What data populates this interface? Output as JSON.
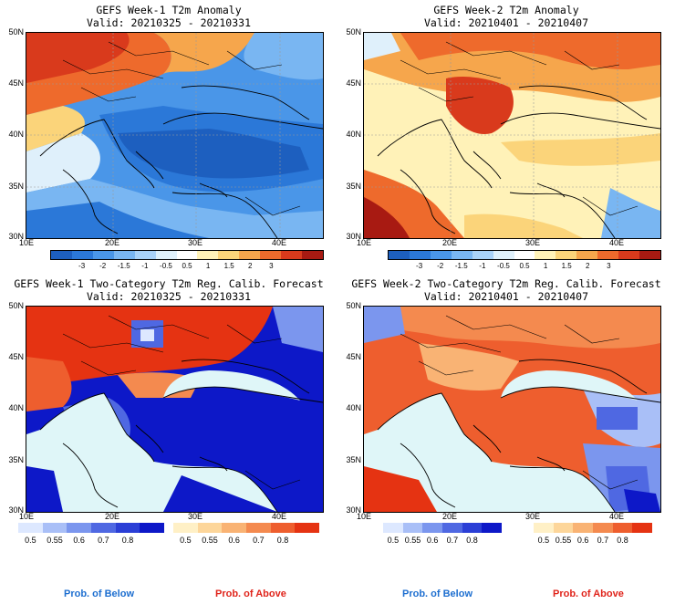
{
  "panels": [
    {
      "id": "tl",
      "title": "GEFS Week-1 T2m Anomaly",
      "valid": "Valid: 20210325 - 20210331"
    },
    {
      "id": "tr",
      "title": "GEFS Week-2 T2m Anomaly",
      "valid": "Valid: 20210401 - 20210407"
    },
    {
      "id": "bl",
      "title": "GEFS Week-1 Two-Category T2m Reg. Calib. Forecast",
      "valid": "Valid: 20210325 - 20210331"
    },
    {
      "id": "br",
      "title": "GEFS Week-2 Two-Category T2m Reg. Calib. Forecast",
      "valid": "Valid: 20210401 - 20210407"
    }
  ],
  "lat_labels": [
    "50N",
    "45N",
    "40N",
    "35N",
    "30N"
  ],
  "lon_labels": [
    "10E",
    "20E",
    "30E",
    "40E"
  ],
  "anomaly_scale": {
    "labels": [
      "-3",
      "-2",
      "-1.5",
      "-1",
      "-0.5",
      "0.5",
      "1",
      "1.5",
      "2",
      "3"
    ],
    "colors": [
      "#1d5fbf",
      "#2b78d8",
      "#4a96e8",
      "#79b6f2",
      "#a9d2f8",
      "#dff0fb",
      "#ffffff",
      "#fff2b8",
      "#fbd47a",
      "#f6a64c",
      "#ee6a2c",
      "#d93a1c",
      "#a81a12"
    ]
  },
  "prob_below": {
    "labels": [
      "0.5",
      "0.55",
      "0.6",
      "0.7",
      "0.8"
    ],
    "colors": [
      "#dde8ff",
      "#a9bff7",
      "#7b96ee",
      "#4f68e2",
      "#2b3fd6",
      "#0d18c8"
    ]
  },
  "prob_above": {
    "labels": [
      "0.5",
      "0.55",
      "0.6",
      "0.7",
      "0.8"
    ],
    "colors": [
      "#fff0c6",
      "#fdd69a",
      "#f9b374",
      "#f48a4f",
      "#ee5e2e",
      "#e53312"
    ]
  },
  "footer": {
    "below": "Prob. of Below",
    "above": "Prob. of Above",
    "below_color": "#1e6fd0",
    "above_color": "#e0241b"
  },
  "colors": {
    "sea_neutral": "#dff6f8",
    "coast": "#000000",
    "grid": "#9a9a9a"
  }
}
